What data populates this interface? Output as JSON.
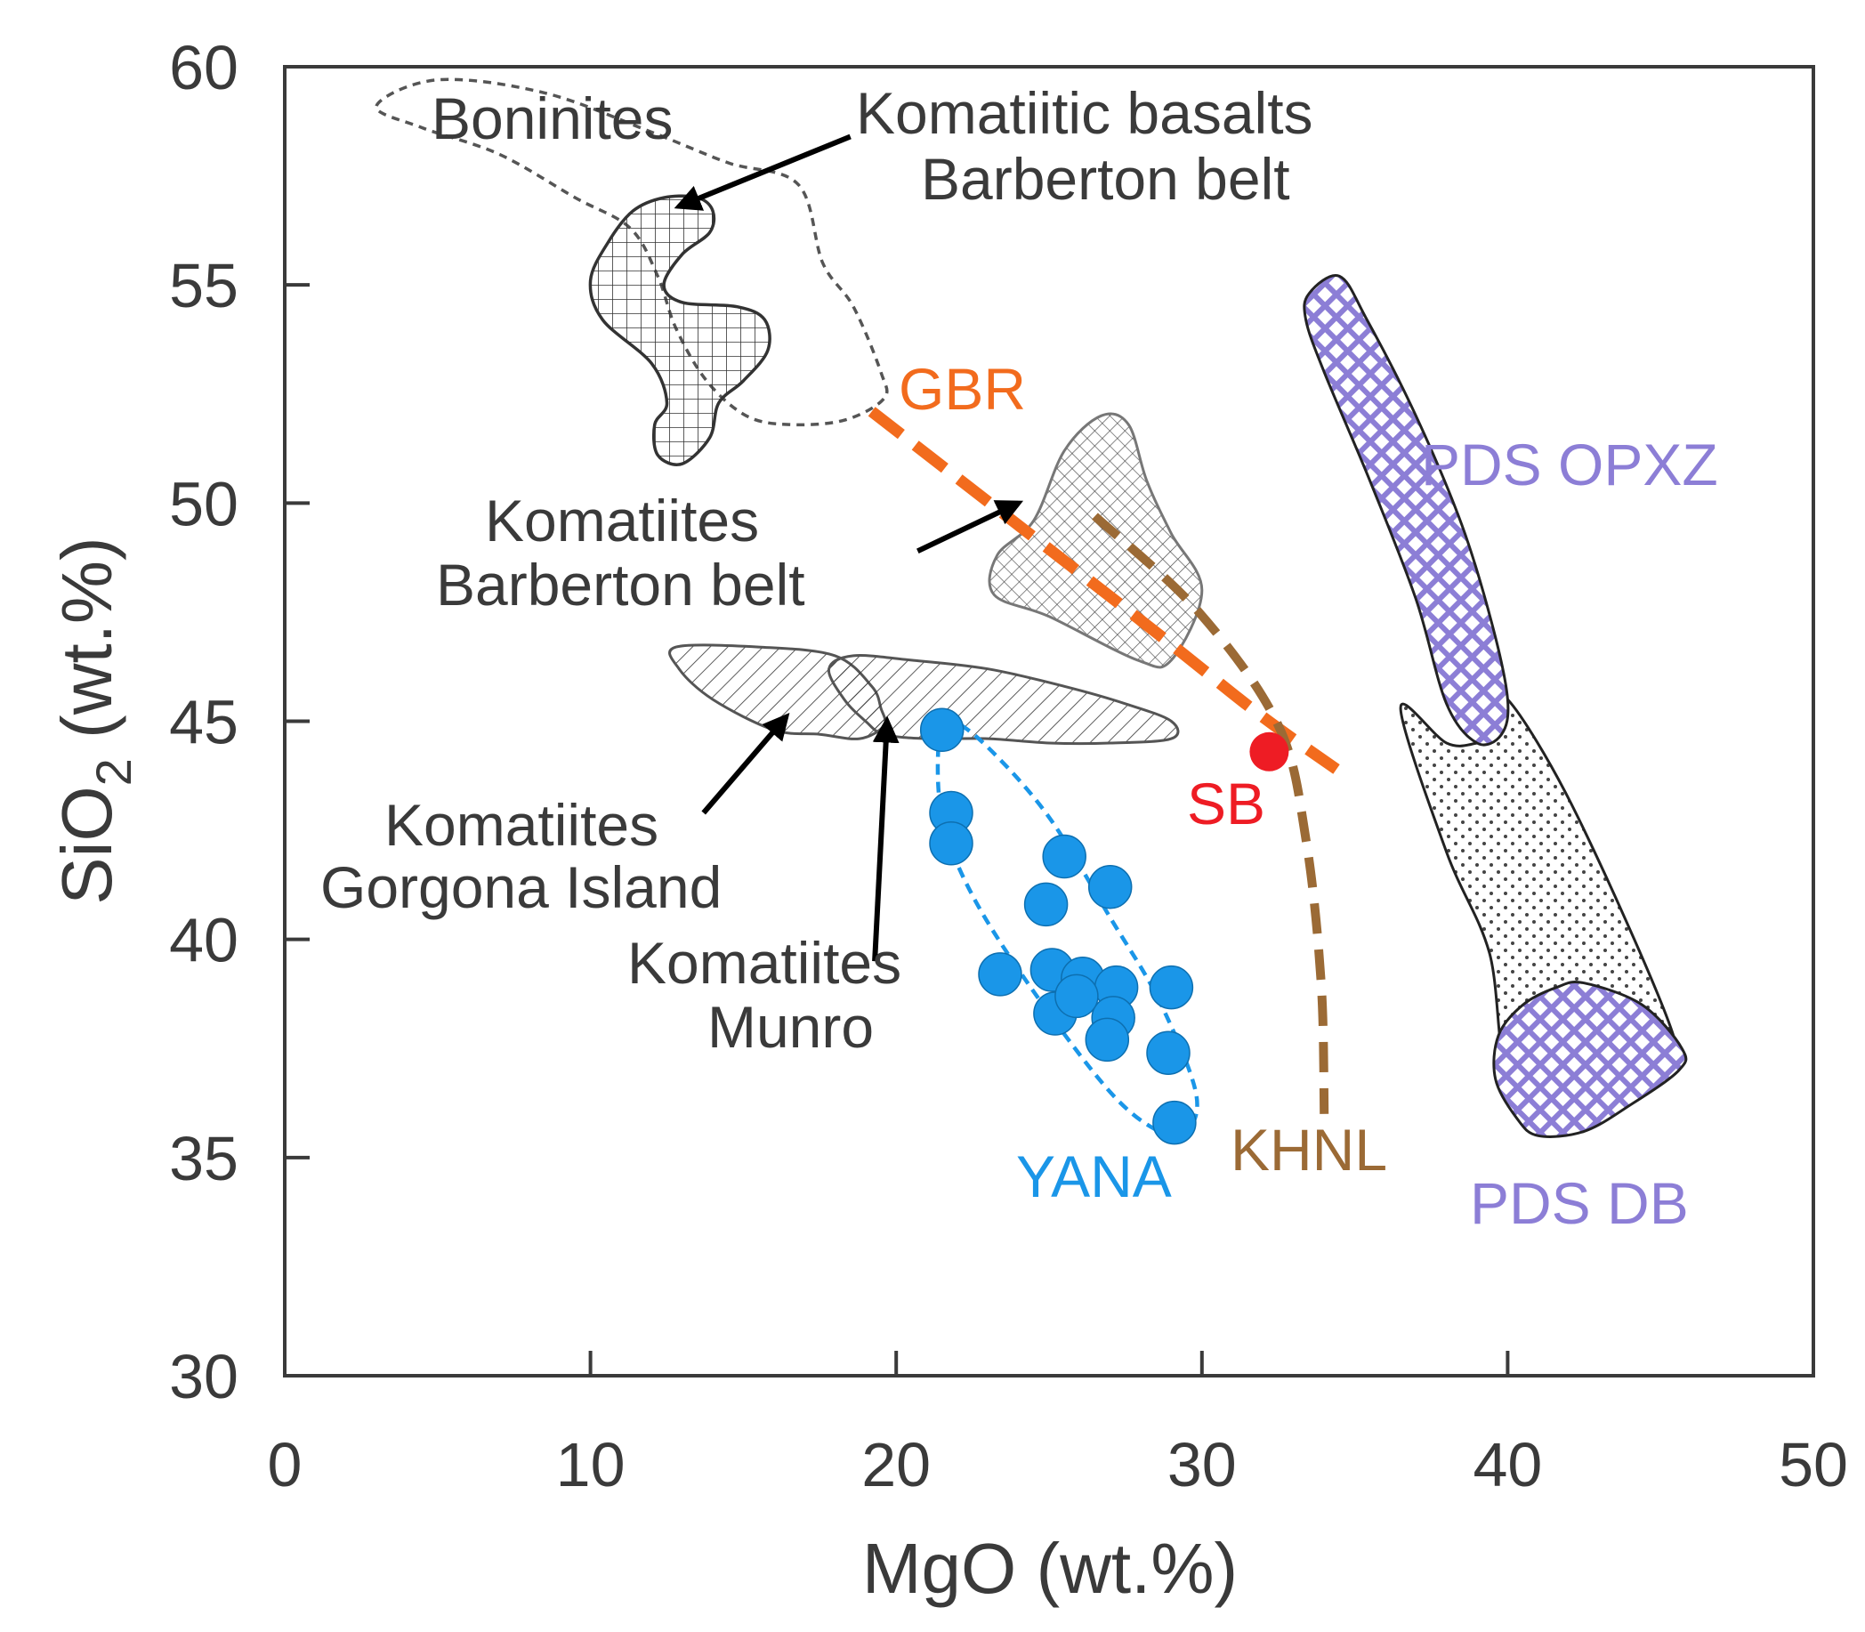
{
  "chart_data": {
    "type": "scatter",
    "xlabel": "MgO (wt.%)",
    "ylabel_main": "SiO",
    "ylabel_sub": "2",
    "ylabel_tail": " (wt.%)",
    "xlim": [
      0,
      50
    ],
    "ylim": [
      30,
      60
    ],
    "xticks": [
      0,
      10,
      20,
      30,
      40,
      50
    ],
    "yticks": [
      30,
      35,
      40,
      45,
      50,
      55,
      60
    ],
    "grid": false,
    "series": [
      {
        "name": "YANA",
        "color": "#1a96e8",
        "points": [
          [
            21.5,
            44.8
          ],
          [
            21.8,
            42.9
          ],
          [
            21.8,
            42.2
          ],
          [
            23.4,
            39.2
          ],
          [
            24.9,
            40.8
          ],
          [
            25.5,
            41.9
          ],
          [
            27.0,
            41.2
          ],
          [
            25.1,
            39.3
          ],
          [
            26.1,
            39.1
          ],
          [
            25.2,
            38.3
          ],
          [
            27.2,
            38.9
          ],
          [
            27.1,
            38.2
          ],
          [
            25.9,
            38.7
          ],
          [
            26.9,
            37.7
          ],
          [
            29.0,
            38.9
          ],
          [
            28.9,
            37.4
          ],
          [
            29.1,
            35.8
          ]
        ]
      },
      {
        "name": "SB",
        "color": "#ee1c24",
        "points": [
          [
            32.2,
            44.3
          ]
        ]
      }
    ],
    "trend_lines": [
      {
        "name": "GBR",
        "color": "#f26b1d",
        "points": [
          [
            19.2,
            52.1
          ],
          [
            28.2,
            47.2
          ],
          [
            31.8,
            45.2
          ],
          [
            34.4,
            43.9
          ]
        ]
      },
      {
        "name": "KHNL",
        "color": "#9b6a35",
        "points": [
          [
            26.5,
            49.7
          ],
          [
            29.9,
            47.5
          ],
          [
            32.5,
            44.9
          ],
          [
            33.4,
            42.3
          ],
          [
            33.9,
            39.0
          ],
          [
            34.0,
            36.0
          ]
        ]
      }
    ],
    "fields": [
      {
        "name": "Boninites",
        "fill": "dashed-outline",
        "points": [
          [
            3.0,
            59.1
          ],
          [
            5.0,
            59.7
          ],
          [
            8.5,
            59.4
          ],
          [
            12.0,
            58.5
          ],
          [
            14.5,
            57.8
          ],
          [
            16.8,
            57.3
          ],
          [
            17.6,
            55.5
          ],
          [
            18.6,
            54.5
          ],
          [
            19.5,
            53.0
          ],
          [
            19.6,
            52.4
          ],
          [
            18.3,
            51.9
          ],
          [
            16.5,
            51.8
          ],
          [
            15.1,
            52.0
          ],
          [
            13.8,
            52.8
          ],
          [
            12.8,
            54.0
          ],
          [
            12.2,
            55.2
          ],
          [
            11.3,
            56.3
          ],
          [
            9.5,
            57.0
          ],
          [
            7.0,
            58.0
          ],
          [
            4.5,
            58.6
          ],
          [
            3.0,
            59.1
          ]
        ]
      },
      {
        "name": "Komatiitic basalts Barberton belt",
        "fill": "grid-hatch",
        "points": [
          [
            12.4,
            57.0
          ],
          [
            13.5,
            57.0
          ],
          [
            14.0,
            56.7
          ],
          [
            13.9,
            56.2
          ],
          [
            13.0,
            55.7
          ],
          [
            12.4,
            55.0
          ],
          [
            13.0,
            54.6
          ],
          [
            14.8,
            54.5
          ],
          [
            15.7,
            54.2
          ],
          [
            15.8,
            53.5
          ],
          [
            15.0,
            52.8
          ],
          [
            14.2,
            52.3
          ],
          [
            13.9,
            51.5
          ],
          [
            13.0,
            50.9
          ],
          [
            12.2,
            51.1
          ],
          [
            12.1,
            51.8
          ],
          [
            12.5,
            52.3
          ],
          [
            12.0,
            53.2
          ],
          [
            10.4,
            54.2
          ],
          [
            10.0,
            55.1
          ],
          [
            10.6,
            56.0
          ],
          [
            11.4,
            56.7
          ],
          [
            12.4,
            57.0
          ]
        ]
      },
      {
        "name": "Komatiites Barberton belt",
        "fill": "grid-hatch-fine",
        "points": [
          [
            26.7,
            52.0
          ],
          [
            27.6,
            51.8
          ],
          [
            28.2,
            50.5
          ],
          [
            29.0,
            49.3
          ],
          [
            30.0,
            48.0
          ],
          [
            29.0,
            46.4
          ],
          [
            27.9,
            46.4
          ],
          [
            25.0,
            47.4
          ],
          [
            23.2,
            47.9
          ],
          [
            23.3,
            48.8
          ],
          [
            24.5,
            49.6
          ],
          [
            25.5,
            51.2
          ],
          [
            26.7,
            52.0
          ]
        ]
      },
      {
        "name": "Komatiites Gorgona Island",
        "fill": "diagonal-hatch",
        "points": [
          [
            12.8,
            46.7
          ],
          [
            15.5,
            46.7
          ],
          [
            18.0,
            46.5
          ],
          [
            19.2,
            45.8
          ],
          [
            19.5,
            45.3
          ],
          [
            19.6,
            44.9
          ],
          [
            18.8,
            44.6
          ],
          [
            17.5,
            44.7
          ],
          [
            16.0,
            44.8
          ],
          [
            14.0,
            45.5
          ],
          [
            12.9,
            46.2
          ],
          [
            12.8,
            46.7
          ]
        ]
      },
      {
        "name": "Komatiites Munro",
        "fill": "diagonal-hatch",
        "points": [
          [
            17.8,
            46.2
          ],
          [
            18.6,
            46.5
          ],
          [
            20.5,
            46.4
          ],
          [
            23.0,
            46.2
          ],
          [
            25.5,
            45.8
          ],
          [
            27.5,
            45.4
          ],
          [
            29.0,
            45.0
          ],
          [
            29.0,
            44.6
          ],
          [
            27.0,
            44.5
          ],
          [
            25.0,
            44.5
          ],
          [
            23.0,
            44.6
          ],
          [
            21.0,
            44.6
          ],
          [
            19.6,
            44.7
          ],
          [
            19.0,
            45.0
          ],
          [
            18.3,
            45.5
          ],
          [
            17.8,
            46.2
          ]
        ]
      },
      {
        "name": "PDS OPXZ",
        "fill": "purple-diamond",
        "points": [
          [
            33.5,
            54.8
          ],
          [
            34.5,
            55.2
          ],
          [
            35.4,
            54.2
          ],
          [
            37.0,
            52.0
          ],
          [
            38.5,
            49.5
          ],
          [
            39.5,
            47.2
          ],
          [
            40.0,
            45.5
          ],
          [
            39.8,
            44.7
          ],
          [
            39.0,
            44.5
          ],
          [
            38.0,
            45.4
          ],
          [
            37.0,
            47.8
          ],
          [
            35.5,
            50.5
          ],
          [
            34.0,
            53.0
          ],
          [
            33.4,
            54.2
          ],
          [
            33.5,
            54.8
          ]
        ]
      },
      {
        "name": "PDS (stippled)",
        "fill": "dot-stipple",
        "points": [
          [
            36.5,
            45.3
          ],
          [
            38.0,
            44.5
          ],
          [
            39.0,
            44.5
          ],
          [
            39.8,
            44.7
          ],
          [
            40.0,
            45.5
          ],
          [
            42.3,
            42.8
          ],
          [
            45.5,
            37.6
          ],
          [
            43.8,
            38.3
          ],
          [
            41.5,
            38.3
          ],
          [
            40.0,
            37.0
          ],
          [
            39.4,
            39.7
          ],
          [
            38.0,
            42.0
          ],
          [
            36.5,
            45.3
          ]
        ]
      },
      {
        "name": "PDS DB",
        "fill": "purple-diamond",
        "points": [
          [
            42.5,
            39.0
          ],
          [
            44.4,
            38.5
          ],
          [
            45.7,
            37.5
          ],
          [
            45.6,
            37.0
          ],
          [
            44.0,
            36.2
          ],
          [
            42.5,
            35.6
          ],
          [
            41.0,
            35.5
          ],
          [
            40.3,
            35.9
          ],
          [
            39.6,
            36.8
          ],
          [
            39.7,
            37.8
          ],
          [
            40.5,
            38.5
          ],
          [
            41.6,
            38.9
          ],
          [
            42.5,
            39.0
          ]
        ]
      },
      {
        "name": "YANA field",
        "fill": "blue-dashed-ellipse",
        "points": [
          [
            21.4,
            44.6
          ],
          [
            21.8,
            45.0
          ],
          [
            23.0,
            44.4
          ],
          [
            25.0,
            42.8
          ],
          [
            27.0,
            40.5
          ],
          [
            28.6,
            38.6
          ],
          [
            29.8,
            36.5
          ],
          [
            29.5,
            35.6
          ],
          [
            28.6,
            35.6
          ],
          [
            27.0,
            36.5
          ],
          [
            24.5,
            38.8
          ],
          [
            22.5,
            41.0
          ],
          [
            21.5,
            42.8
          ],
          [
            21.4,
            44.6
          ]
        ]
      }
    ],
    "annotations": {
      "boninites": "Boninites",
      "komatiitic_basalts_1": "Komatiitic basalts",
      "komatiitic_basalts_2": "Barberton belt",
      "gbr": "GBR",
      "komatiites_barberton_1": "Komatiites",
      "komatiites_barberton_2": "Barberton belt",
      "komatiites_gorgona_1": "Komatiites",
      "komatiites_gorgona_2": "Gorgona Island",
      "komatiites_munro_1": "Komatiites",
      "komatiites_munro_2": "Munro",
      "sb": "SB",
      "yana": "YANA",
      "khnl": "KHNL",
      "pds_opxz": "PDS OPXZ",
      "pds_db": "PDS DB"
    },
    "arrows": [
      {
        "name": "komatiitic-basalts-arrow",
        "from": [
          18.5,
          58.4
        ],
        "to": [
          12.9,
          56.8
        ]
      },
      {
        "name": "komatiites-barberton-arrow",
        "from": [
          20.7,
          48.9
        ],
        "to": [
          24.0,
          50.0
        ]
      },
      {
        "name": "komatiites-gorgona-arrow",
        "from": [
          13.7,
          42.9
        ],
        "to": [
          16.4,
          45.1
        ]
      },
      {
        "name": "komatiites-munro-arrow",
        "from": [
          19.3,
          39.5
        ],
        "to": [
          19.7,
          45.0
        ]
      }
    ]
  },
  "colors": {
    "axis": "#3a3a3a",
    "gbr": "#f26b1d",
    "khnl": "#9b6a35",
    "yana": "#1a96e8",
    "sb": "#ee1c24",
    "pds": "#8c7ed6"
  }
}
